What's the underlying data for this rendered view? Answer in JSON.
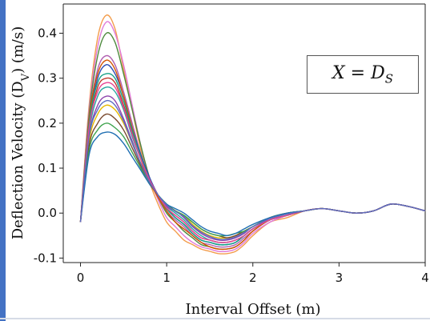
{
  "chart_data": {
    "type": "line",
    "title": "",
    "xlabel": "Interval Offset  (m)",
    "ylabel": "Deflection Velocity (D",
    "ylabel_sub": "V",
    "ylabel_unit": ")   (m/s)",
    "xlim": [
      -0.2,
      4.0
    ],
    "ylim": [
      -0.11,
      0.465
    ],
    "x_ticks": [
      0,
      1,
      2,
      3,
      4
    ],
    "x_tick_labels": [
      "0",
      "1",
      "2",
      "3",
      "4"
    ],
    "y_ticks": [
      -0.1,
      0.0,
      0.1,
      0.2,
      0.3,
      0.4
    ],
    "y_tick_labels": [
      "-0.1",
      "0.0",
      "0.1",
      "0.2",
      "0.3",
      "0.4"
    ],
    "grid": false,
    "legend": "none",
    "annotation": "X = D",
    "annotation_sub": "S",
    "x": [
      0.0,
      0.1,
      0.2,
      0.3,
      0.4,
      0.5,
      0.6,
      0.7,
      0.8,
      0.9,
      1.0,
      1.1,
      1.2,
      1.3,
      1.4,
      1.5,
      1.6,
      1.7,
      1.8,
      1.9,
      2.0,
      2.2,
      2.4,
      2.6,
      2.8,
      3.0,
      3.2,
      3.4,
      3.6,
      3.8,
      4.0
    ],
    "series": [
      {
        "color": "#f39c4b",
        "values": [
          -0.02,
          0.24,
          0.39,
          0.44,
          0.41,
          0.32,
          0.23,
          0.14,
          0.07,
          0.02,
          -0.02,
          -0.04,
          -0.06,
          -0.07,
          -0.08,
          -0.085,
          -0.09,
          -0.09,
          -0.085,
          -0.07,
          -0.05,
          -0.02,
          -0.01,
          0.005,
          0.01,
          0.005,
          0.0,
          0.005,
          0.02,
          0.015,
          0.005
        ]
      },
      {
        "color": "#e07ad8",
        "values": [
          -0.02,
          0.23,
          0.37,
          0.425,
          0.4,
          0.33,
          0.24,
          0.15,
          0.08,
          0.03,
          -0.01,
          -0.03,
          -0.05,
          -0.065,
          -0.075,
          -0.08,
          -0.085,
          -0.085,
          -0.08,
          -0.065,
          -0.045,
          -0.02,
          -0.005,
          0.005,
          0.01,
          0.005,
          0.0,
          0.005,
          0.02,
          0.015,
          0.005
        ]
      },
      {
        "color": "#4e8a3e",
        "values": [
          -0.02,
          0.22,
          0.35,
          0.4,
          0.38,
          0.31,
          0.23,
          0.15,
          0.08,
          0.035,
          0.0,
          -0.02,
          -0.04,
          -0.055,
          -0.07,
          -0.075,
          -0.08,
          -0.08,
          -0.075,
          -0.06,
          -0.04,
          -0.015,
          -0.005,
          0.005,
          0.01,
          0.005,
          0.0,
          0.005,
          0.02,
          0.015,
          0.005
        ]
      },
      {
        "color": "#b05fb0",
        "values": [
          -0.02,
          0.21,
          0.32,
          0.35,
          0.33,
          0.27,
          0.2,
          0.13,
          0.075,
          0.035,
          0.005,
          -0.015,
          -0.03,
          -0.05,
          -0.065,
          -0.07,
          -0.075,
          -0.075,
          -0.07,
          -0.055,
          -0.04,
          -0.015,
          -0.005,
          0.005,
          0.01,
          0.005,
          0.0,
          0.005,
          0.02,
          0.015,
          0.005
        ]
      },
      {
        "color": "#2f4fb5",
        "values": [
          -0.02,
          0.2,
          0.3,
          0.33,
          0.31,
          0.26,
          0.19,
          0.13,
          0.08,
          0.04,
          0.01,
          -0.01,
          -0.025,
          -0.045,
          -0.06,
          -0.065,
          -0.07,
          -0.07,
          -0.065,
          -0.05,
          -0.035,
          -0.015,
          -0.005,
          0.005,
          0.01,
          0.005,
          0.0,
          0.005,
          0.02,
          0.015,
          0.005
        ]
      },
      {
        "color": "#c0392b",
        "values": [
          -0.02,
          0.19,
          0.28,
          0.3,
          0.29,
          0.24,
          0.18,
          0.12,
          0.075,
          0.04,
          0.01,
          -0.005,
          -0.02,
          -0.04,
          -0.055,
          -0.06,
          -0.065,
          -0.065,
          -0.06,
          -0.05,
          -0.035,
          -0.015,
          -0.005,
          0.005,
          0.01,
          0.005,
          0.0,
          0.005,
          0.02,
          0.015,
          0.005
        ]
      },
      {
        "color": "#2aa7a0",
        "values": [
          -0.02,
          0.18,
          0.26,
          0.28,
          0.27,
          0.23,
          0.17,
          0.12,
          0.075,
          0.04,
          0.015,
          0.0,
          -0.015,
          -0.035,
          -0.05,
          -0.06,
          -0.065,
          -0.065,
          -0.06,
          -0.05,
          -0.035,
          -0.015,
          -0.005,
          0.005,
          0.01,
          0.005,
          0.0,
          0.005,
          0.02,
          0.015,
          0.005
        ]
      },
      {
        "color": "#8e44ad",
        "values": [
          -0.02,
          0.17,
          0.24,
          0.26,
          0.25,
          0.21,
          0.16,
          0.11,
          0.07,
          0.04,
          0.015,
          0.005,
          -0.01,
          -0.03,
          -0.045,
          -0.055,
          -0.06,
          -0.06,
          -0.055,
          -0.045,
          -0.03,
          -0.015,
          -0.005,
          0.005,
          0.01,
          0.005,
          0.0,
          0.005,
          0.02,
          0.015,
          0.005
        ]
      },
      {
        "color": "#e6b800",
        "values": [
          -0.02,
          0.16,
          0.22,
          0.24,
          0.23,
          0.2,
          0.155,
          0.11,
          0.07,
          0.04,
          0.02,
          0.005,
          -0.005,
          -0.025,
          -0.04,
          -0.05,
          -0.055,
          -0.055,
          -0.05,
          -0.04,
          -0.03,
          -0.01,
          0.0,
          0.005,
          0.01,
          0.005,
          0.0,
          0.005,
          0.02,
          0.015,
          0.005
        ]
      },
      {
        "color": "#7a4a2e",
        "values": [
          -0.02,
          0.15,
          0.2,
          0.22,
          0.21,
          0.185,
          0.145,
          0.105,
          0.07,
          0.04,
          0.02,
          0.005,
          -0.005,
          -0.02,
          -0.035,
          -0.045,
          -0.05,
          -0.055,
          -0.05,
          -0.04,
          -0.03,
          -0.01,
          0.0,
          0.005,
          0.01,
          0.005,
          0.0,
          0.005,
          0.02,
          0.015,
          0.005
        ]
      },
      {
        "color": "#3fa34d",
        "values": [
          -0.02,
          0.14,
          0.185,
          0.2,
          0.19,
          0.17,
          0.135,
          0.1,
          0.065,
          0.04,
          0.02,
          0.005,
          -0.005,
          -0.02,
          -0.035,
          -0.045,
          -0.05,
          -0.05,
          -0.045,
          -0.04,
          -0.03,
          -0.01,
          0.0,
          0.005,
          0.01,
          0.005,
          0.0,
          0.005,
          0.02,
          0.015,
          0.005
        ]
      },
      {
        "color": "#1f6fb2",
        "values": [
          -0.02,
          0.13,
          0.17,
          0.18,
          0.175,
          0.155,
          0.125,
          0.095,
          0.065,
          0.04,
          0.02,
          0.01,
          0.0,
          -0.015,
          -0.03,
          -0.04,
          -0.045,
          -0.05,
          -0.045,
          -0.035,
          -0.025,
          -0.01,
          0.0,
          0.005,
          0.01,
          0.005,
          0.0,
          0.005,
          0.02,
          0.015,
          0.005
        ]
      },
      {
        "color": "#d35400",
        "values": [
          -0.02,
          0.21,
          0.31,
          0.34,
          0.32,
          0.26,
          0.19,
          0.12,
          0.07,
          0.035,
          0.005,
          -0.02,
          -0.035,
          -0.05,
          -0.065,
          -0.075,
          -0.08,
          -0.08,
          -0.075,
          -0.06,
          -0.04,
          -0.015,
          -0.005,
          0.005,
          0.01,
          0.005,
          0.0,
          0.005,
          0.02,
          0.015,
          0.005
        ]
      },
      {
        "color": "#16a085",
        "values": [
          -0.02,
          0.2,
          0.29,
          0.31,
          0.3,
          0.25,
          0.185,
          0.125,
          0.075,
          0.04,
          0.01,
          -0.01,
          -0.025,
          -0.045,
          -0.06,
          -0.065,
          -0.07,
          -0.07,
          -0.065,
          -0.05,
          -0.035,
          -0.015,
          -0.005,
          0.005,
          0.01,
          0.005,
          0.0,
          0.005,
          0.02,
          0.015,
          0.005
        ]
      },
      {
        "color": "#e84393",
        "values": [
          -0.02,
          0.19,
          0.27,
          0.29,
          0.28,
          0.235,
          0.175,
          0.12,
          0.075,
          0.04,
          0.012,
          -0.005,
          -0.02,
          -0.04,
          -0.055,
          -0.06,
          -0.065,
          -0.065,
          -0.06,
          -0.05,
          -0.035,
          -0.015,
          -0.005,
          0.005,
          0.01,
          0.005,
          0.0,
          0.005,
          0.02,
          0.015,
          0.005
        ]
      },
      {
        "color": "#5b6cbf",
        "values": [
          -0.02,
          0.17,
          0.23,
          0.25,
          0.24,
          0.205,
          0.155,
          0.11,
          0.07,
          0.04,
          0.018,
          0.004,
          -0.008,
          -0.028,
          -0.042,
          -0.052,
          -0.058,
          -0.058,
          -0.053,
          -0.043,
          -0.03,
          -0.012,
          -0.002,
          0.005,
          0.01,
          0.005,
          0.0,
          0.005,
          0.02,
          0.015,
          0.005
        ]
      }
    ]
  }
}
